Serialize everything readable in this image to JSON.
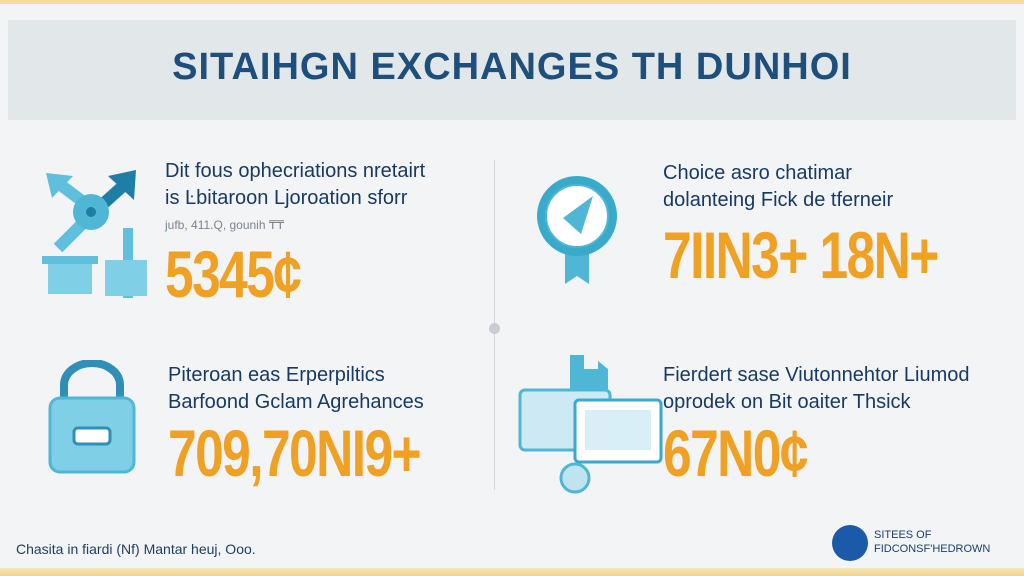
{
  "title": "SITAIHGN EXCHANGES TH DUNHOI",
  "quadrants": [
    {
      "icon": "arrows-hub-icon",
      "line1": "Dit fous ophecriations nretairt",
      "line2": "is Ŀbitaroon Ljoroation sforr",
      "small": "jufb, 411.Q, gounih ₸₸",
      "number": "5345¢"
    },
    {
      "icon": "badge-ribbon-icon",
      "line1": "Choice asro chatimar",
      "line2": "dolanteing Fick de tferneir",
      "number": "7IIN3+ 18N+"
    },
    {
      "icon": "padlock-bag-icon",
      "line1": "Piteroan eas Erperpiltics",
      "line2": "Barfoond Gclam Agrehances",
      "number": "709,70NI9+"
    },
    {
      "icon": "card-terminal-icon",
      "line1": "Fierdert sase Viutonnehtor Liumod",
      "line2": "oprodek on Bit oaiter Thsick",
      "number": "67N0¢"
    }
  ],
  "footer": {
    "caption": "Chasita in fiardi (Nf) Mantar heuj, Ooo.",
    "logo_line1": "SITEES OF",
    "logo_line2": "FIDCONSF'HEDROWN"
  },
  "colors": {
    "accent": "#f0a023",
    "primary": "#1d4e7c",
    "icon": "#4fb6d6"
  }
}
